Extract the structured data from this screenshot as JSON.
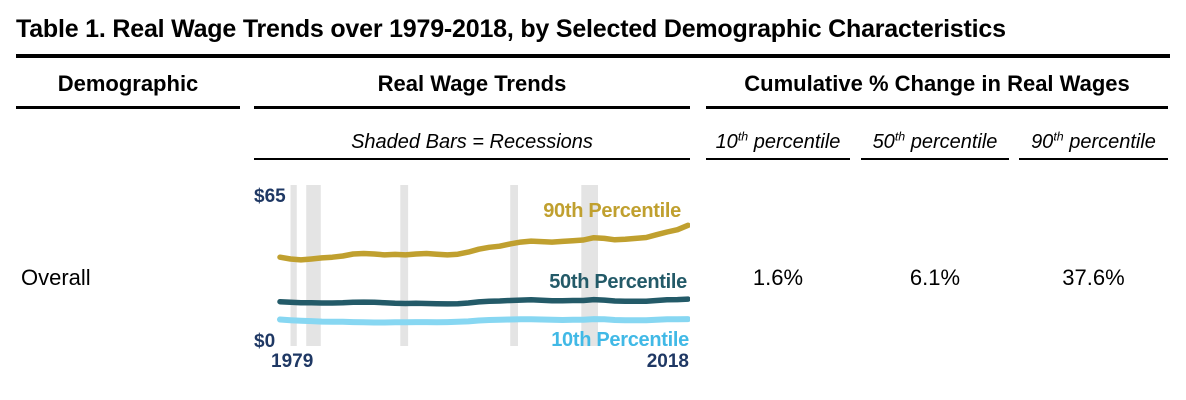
{
  "title": "Table 1. Real Wage Trends over 1979-2018, by Selected Demographic Characteristics",
  "columns": {
    "demographic": {
      "header": "Demographic"
    },
    "trends": {
      "header": "Real Wage Trends",
      "subheader": "Shaded Bars = Recessions"
    },
    "cumulative": {
      "header": "Cumulative % Change in Real Wages",
      "subcolumns": [
        {
          "num": "10",
          "sup": "th",
          "rest": " percentile"
        },
        {
          "num": "50",
          "sup": "th",
          "rest": " percentile"
        },
        {
          "num": "90",
          "sup": "th",
          "rest": " percentile"
        }
      ]
    }
  },
  "rows": [
    {
      "demographic": "Overall",
      "p10": "1.6%",
      "p50": "6.1%",
      "p90": "37.6%"
    }
  ],
  "chart_data": {
    "type": "line",
    "title": "Real Wage Trends, Overall",
    "note": "Shaded Bars = Recessions",
    "y_label_top": "$65",
    "y_label_bottom": "$0",
    "x_label_left": "1979",
    "x_label_right": "2018",
    "x_range": [
      1979,
      2018
    ],
    "y_range": [
      0,
      65
    ],
    "grid": false,
    "axis_label_color": "#1F3864",
    "recession_color": "#E4E4E4",
    "recessions": [
      [
        1980.0,
        1980.6
      ],
      [
        1981.5,
        1982.9
      ],
      [
        1990.5,
        1991.25
      ],
      [
        2001.0,
        2001.75
      ],
      [
        2007.8,
        2009.4
      ]
    ],
    "years": [
      1979,
      1980,
      1981,
      1982,
      1983,
      1984,
      1985,
      1986,
      1987,
      1988,
      1989,
      1990,
      1991,
      1992,
      1993,
      1994,
      1995,
      1996,
      1997,
      1998,
      1999,
      2000,
      2001,
      2002,
      2003,
      2004,
      2005,
      2006,
      2007,
      2008,
      2009,
      2010,
      2011,
      2012,
      2013,
      2014,
      2015,
      2016,
      2017,
      2018
    ],
    "series": [
      {
        "name": "90th Percentile",
        "color": "#C0A02F",
        "label_color": "#C0A02F",
        "stroke_width": 5.5,
        "cumulative_change_pct": 37.6,
        "values": [
          37.0,
          36.2,
          35.8,
          36.2,
          36.7,
          37.0,
          37.5,
          38.4,
          38.6,
          38.4,
          38.0,
          38.2,
          38.0,
          38.4,
          38.6,
          38.3,
          38.0,
          38.3,
          39.2,
          40.5,
          41.3,
          41.8,
          42.8,
          43.6,
          44.0,
          43.8,
          43.6,
          43.9,
          44.2,
          44.5,
          45.5,
          45.2,
          44.6,
          44.8,
          45.2,
          45.6,
          46.8,
          48.0,
          49.0,
          50.9
        ]
      },
      {
        "name": "50th Percentile",
        "color": "#235A68",
        "label_color": "#235A68",
        "stroke_width": 5.5,
        "cumulative_change_pct": 6.1,
        "values": [
          17.6,
          17.3,
          17.1,
          17.1,
          17.0,
          17.0,
          17.1,
          17.3,
          17.4,
          17.3,
          17.1,
          16.9,
          16.8,
          16.9,
          16.8,
          16.7,
          16.6,
          16.7,
          17.0,
          17.5,
          17.8,
          17.9,
          18.1,
          18.3,
          18.4,
          18.2,
          18.0,
          18.0,
          18.1,
          18.1,
          18.5,
          18.3,
          17.9,
          17.8,
          17.8,
          17.8,
          18.1,
          18.4,
          18.5,
          18.7
        ]
      },
      {
        "name": "10th Percentile",
        "color": "#87D7F2",
        "label_color": "#41B9E6",
        "stroke_width": 6,
        "cumulative_change_pct": 1.6,
        "values": [
          9.8,
          9.5,
          9.3,
          9.1,
          8.9,
          8.8,
          8.8,
          8.7,
          8.6,
          8.5,
          8.5,
          8.6,
          8.6,
          8.7,
          8.7,
          8.6,
          8.7,
          8.8,
          9.0,
          9.4,
          9.6,
          9.7,
          9.8,
          9.9,
          9.9,
          9.8,
          9.7,
          9.6,
          9.7,
          9.7,
          10.0,
          9.9,
          9.6,
          9.5,
          9.5,
          9.5,
          9.7,
          9.9,
          9.9,
          10.0
        ]
      }
    ]
  }
}
